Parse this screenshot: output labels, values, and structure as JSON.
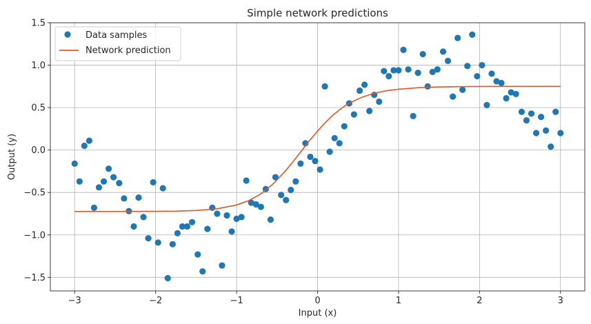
{
  "chart_data": {
    "type": "scatter",
    "title": "Simple network predictions",
    "xlabel": "Input (x)",
    "ylabel": "Output (y)",
    "xlim": [
      -3.3,
      3.3
    ],
    "ylim": [
      -1.66,
      1.5
    ],
    "xticks": [
      -3,
      -2,
      -1,
      0,
      1,
      2,
      3
    ],
    "xtick_labels": [
      "−3",
      "−2",
      "−1",
      "0",
      "1",
      "2",
      "3"
    ],
    "yticks": [
      -1.5,
      -1.0,
      -0.5,
      0.0,
      0.5,
      1.0,
      1.5
    ],
    "ytick_labels": [
      "−1.5",
      "−1.0",
      "−0.5",
      "0.0",
      "0.5",
      "1.0",
      "1.5"
    ],
    "grid": true,
    "legend": "top-left",
    "colors": {
      "scatter": "#1f77b4",
      "line": "#e8551a",
      "grid": "#b0b0b0"
    },
    "series": [
      {
        "name": "Data samples",
        "kind": "scatter",
        "x": [
          -3.0,
          -2.94,
          -2.88,
          -2.82,
          -2.76,
          -2.7,
          -2.64,
          -2.58,
          -2.52,
          -2.45,
          -2.39,
          -2.33,
          -2.27,
          -2.21,
          -2.15,
          -2.09,
          -2.03,
          -1.97,
          -1.91,
          -1.85,
          -1.79,
          -1.73,
          -1.67,
          -1.61,
          -1.55,
          -1.48,
          -1.42,
          -1.36,
          -1.3,
          -1.24,
          -1.18,
          -1.12,
          -1.06,
          -1.0,
          -0.94,
          -0.88,
          -0.82,
          -0.76,
          -0.7,
          -0.64,
          -0.58,
          -0.52,
          -0.45,
          -0.39,
          -0.33,
          -0.27,
          -0.21,
          -0.15,
          -0.09,
          -0.03,
          0.03,
          0.09,
          0.15,
          0.21,
          0.27,
          0.33,
          0.39,
          0.45,
          0.52,
          0.58,
          0.64,
          0.7,
          0.76,
          0.82,
          0.88,
          0.94,
          1.0,
          1.06,
          1.12,
          1.18,
          1.24,
          1.3,
          1.36,
          1.42,
          1.48,
          1.55,
          1.61,
          1.67,
          1.73,
          1.79,
          1.85,
          1.91,
          1.97,
          2.03,
          2.09,
          2.15,
          2.21,
          2.27,
          2.33,
          2.39,
          2.45,
          2.52,
          2.58,
          2.64,
          2.7,
          2.76,
          2.82,
          2.88,
          2.94,
          3.0
        ],
        "y": [
          -0.16,
          -0.37,
          0.05,
          0.11,
          -0.68,
          -0.44,
          -0.37,
          -0.22,
          -0.32,
          -0.39,
          -0.57,
          -0.72,
          -0.9,
          -0.56,
          -0.79,
          -1.04,
          -0.38,
          -1.09,
          -0.45,
          -1.51,
          -1.11,
          -0.98,
          -0.9,
          -0.9,
          -0.85,
          -1.23,
          -1.43,
          -0.93,
          -0.68,
          -0.75,
          -1.36,
          -0.77,
          -0.96,
          -0.81,
          -0.79,
          -0.36,
          -0.62,
          -0.64,
          -0.67,
          -0.46,
          -0.82,
          -0.32,
          -0.53,
          -0.59,
          -0.47,
          -0.37,
          -0.16,
          0.08,
          -0.08,
          -0.13,
          -0.23,
          0.75,
          -0.02,
          0.14,
          0.08,
          0.28,
          0.55,
          0.42,
          0.7,
          0.77,
          0.46,
          0.65,
          0.57,
          0.93,
          0.87,
          0.94,
          0.94,
          1.18,
          0.95,
          0.4,
          0.91,
          1.13,
          0.75,
          0.92,
          0.95,
          1.16,
          1.05,
          0.63,
          1.32,
          0.71,
          0.99,
          1.36,
          0.87,
          1.0,
          0.53,
          0.9,
          0.81,
          0.79,
          0.61,
          0.68,
          0.66,
          0.45,
          0.35,
          0.43,
          0.2,
          0.39,
          0.23,
          0.04,
          0.45,
          0.2
        ]
      },
      {
        "name": "Network prediction",
        "kind": "line",
        "x": [
          -3.0,
          -2.75,
          -2.5,
          -2.25,
          -2.0,
          -1.75,
          -1.5,
          -1.25,
          -1.0,
          -0.85,
          -0.7,
          -0.55,
          -0.4,
          -0.3,
          -0.2,
          -0.1,
          0.0,
          0.1,
          0.2,
          0.3,
          0.4,
          0.55,
          0.7,
          0.85,
          1.0,
          1.25,
          1.5,
          1.75,
          2.0,
          2.25,
          2.5,
          2.75,
          3.0
        ],
        "y": [
          -0.724,
          -0.724,
          -0.724,
          -0.723,
          -0.722,
          -0.72,
          -0.712,
          -0.694,
          -0.647,
          -0.596,
          -0.516,
          -0.4,
          -0.249,
          -0.134,
          -0.011,
          0.111,
          0.224,
          0.328,
          0.42,
          0.496,
          0.557,
          0.623,
          0.669,
          0.699,
          0.717,
          0.735,
          0.743,
          0.747,
          0.749,
          0.75,
          0.75,
          0.75,
          0.75
        ]
      }
    ]
  }
}
